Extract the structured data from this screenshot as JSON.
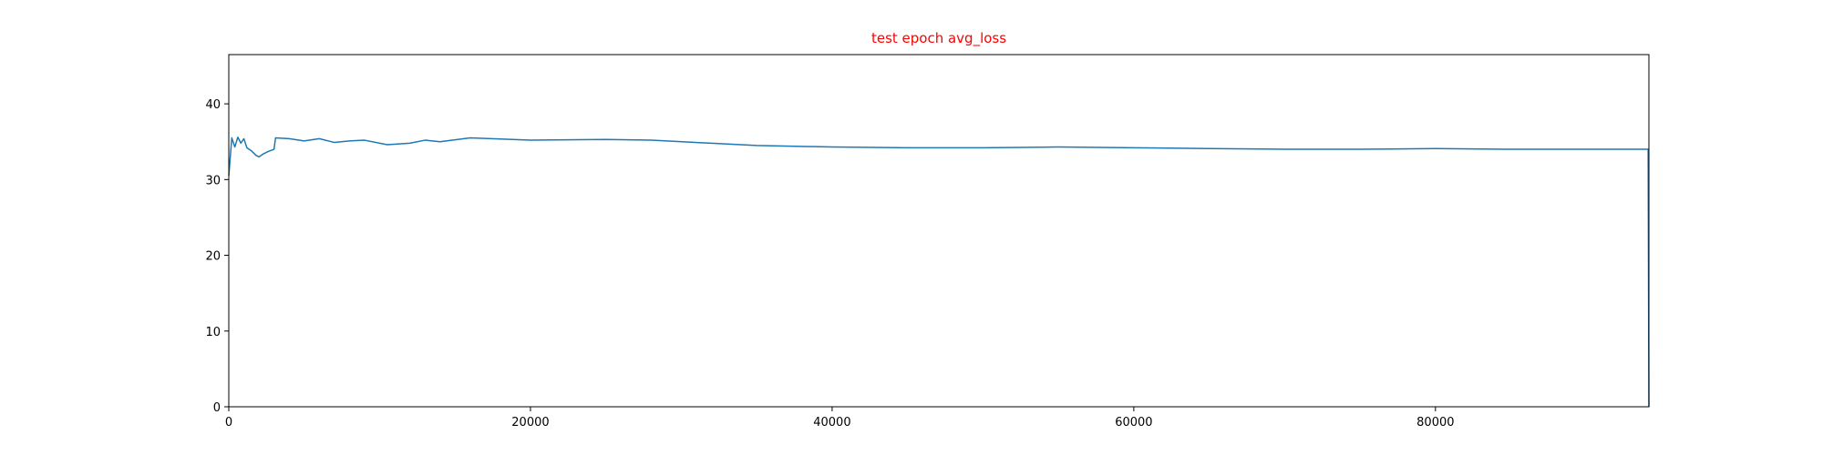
{
  "chart_data": {
    "type": "line",
    "title": "test epoch avg_loss",
    "title_color": "#ff0000",
    "x": [
      0,
      200,
      400,
      600,
      800,
      1000,
      1200,
      1500,
      1800,
      2000,
      2300,
      2600,
      3000,
      3100,
      4000,
      5000,
      6000,
      7000,
      8000,
      9000,
      10500,
      12000,
      13000,
      14000,
      16000,
      20000,
      25000,
      28000,
      32000,
      35000,
      40000,
      45000,
      50000,
      55000,
      60000,
      65000,
      70000,
      75000,
      80000,
      85000,
      90000,
      94100,
      94150
    ],
    "values": [
      30.5,
      35.5,
      34.3,
      35.6,
      34.8,
      35.4,
      34.2,
      33.8,
      33.2,
      33.0,
      33.4,
      33.7,
      34.0,
      35.5,
      35.4,
      35.1,
      35.4,
      34.9,
      35.1,
      35.2,
      34.6,
      34.8,
      35.2,
      35.0,
      35.5,
      35.2,
      35.3,
      35.2,
      34.8,
      34.5,
      34.3,
      34.2,
      34.2,
      34.3,
      34.2,
      34.1,
      34.0,
      34.0,
      34.1,
      34.0,
      34.0,
      34.0,
      0
    ],
    "color": "#1f77b4",
    "xlim": [
      0,
      94150
    ],
    "ylim": [
      0,
      46.5
    ],
    "xticks": [
      0,
      20000,
      40000,
      60000,
      80000
    ],
    "yticks": [
      0,
      10,
      20,
      30,
      40
    ]
  }
}
